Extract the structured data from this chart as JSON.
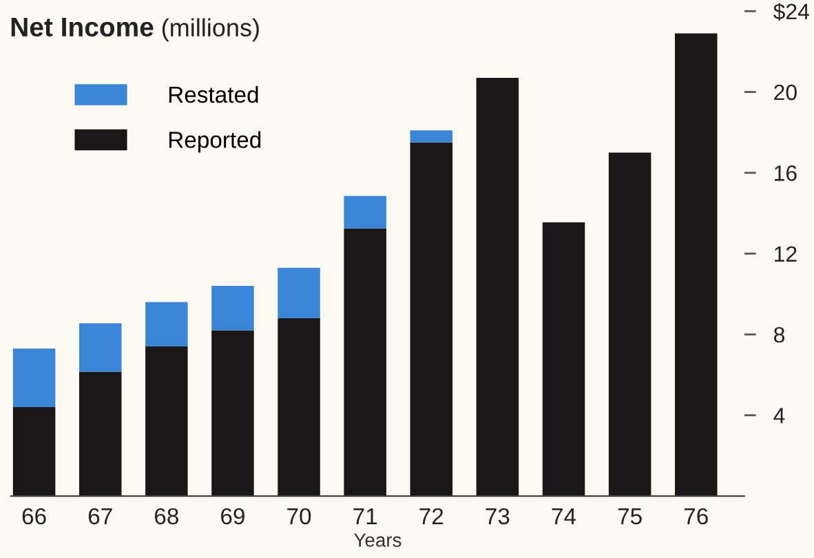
{
  "chart_data": {
    "type": "bar",
    "title": "Net Income",
    "subtitle": "(millions)",
    "xlabel": "Years",
    "categories": [
      "66",
      "67",
      "68",
      "69",
      "70",
      "71",
      "72",
      "73",
      "74",
      "75",
      "76"
    ],
    "stacked": true,
    "series": [
      {
        "name": "Reported",
        "color": "#1a1718",
        "values": [
          4.4,
          6.15,
          7.4,
          8.2,
          8.8,
          13.25,
          17.5,
          20.7,
          13.55,
          17.0,
          22.9
        ]
      },
      {
        "name": "Restated",
        "color": "#3b85d6",
        "values": [
          2.9,
          2.4,
          2.2,
          2.2,
          2.5,
          1.6,
          0.6,
          null,
          null,
          null,
          null
        ]
      }
    ],
    "ylim": [
      0,
      24
    ],
    "yticks": [
      {
        "value": 4,
        "label": "4"
      },
      {
        "value": 8,
        "label": "8"
      },
      {
        "value": 12,
        "label": "12"
      },
      {
        "value": 16,
        "label": "16"
      },
      {
        "value": 20,
        "label": "20"
      },
      {
        "value": 24,
        "label": "$24"
      }
    ],
    "grid": false,
    "legend": "top left"
  }
}
